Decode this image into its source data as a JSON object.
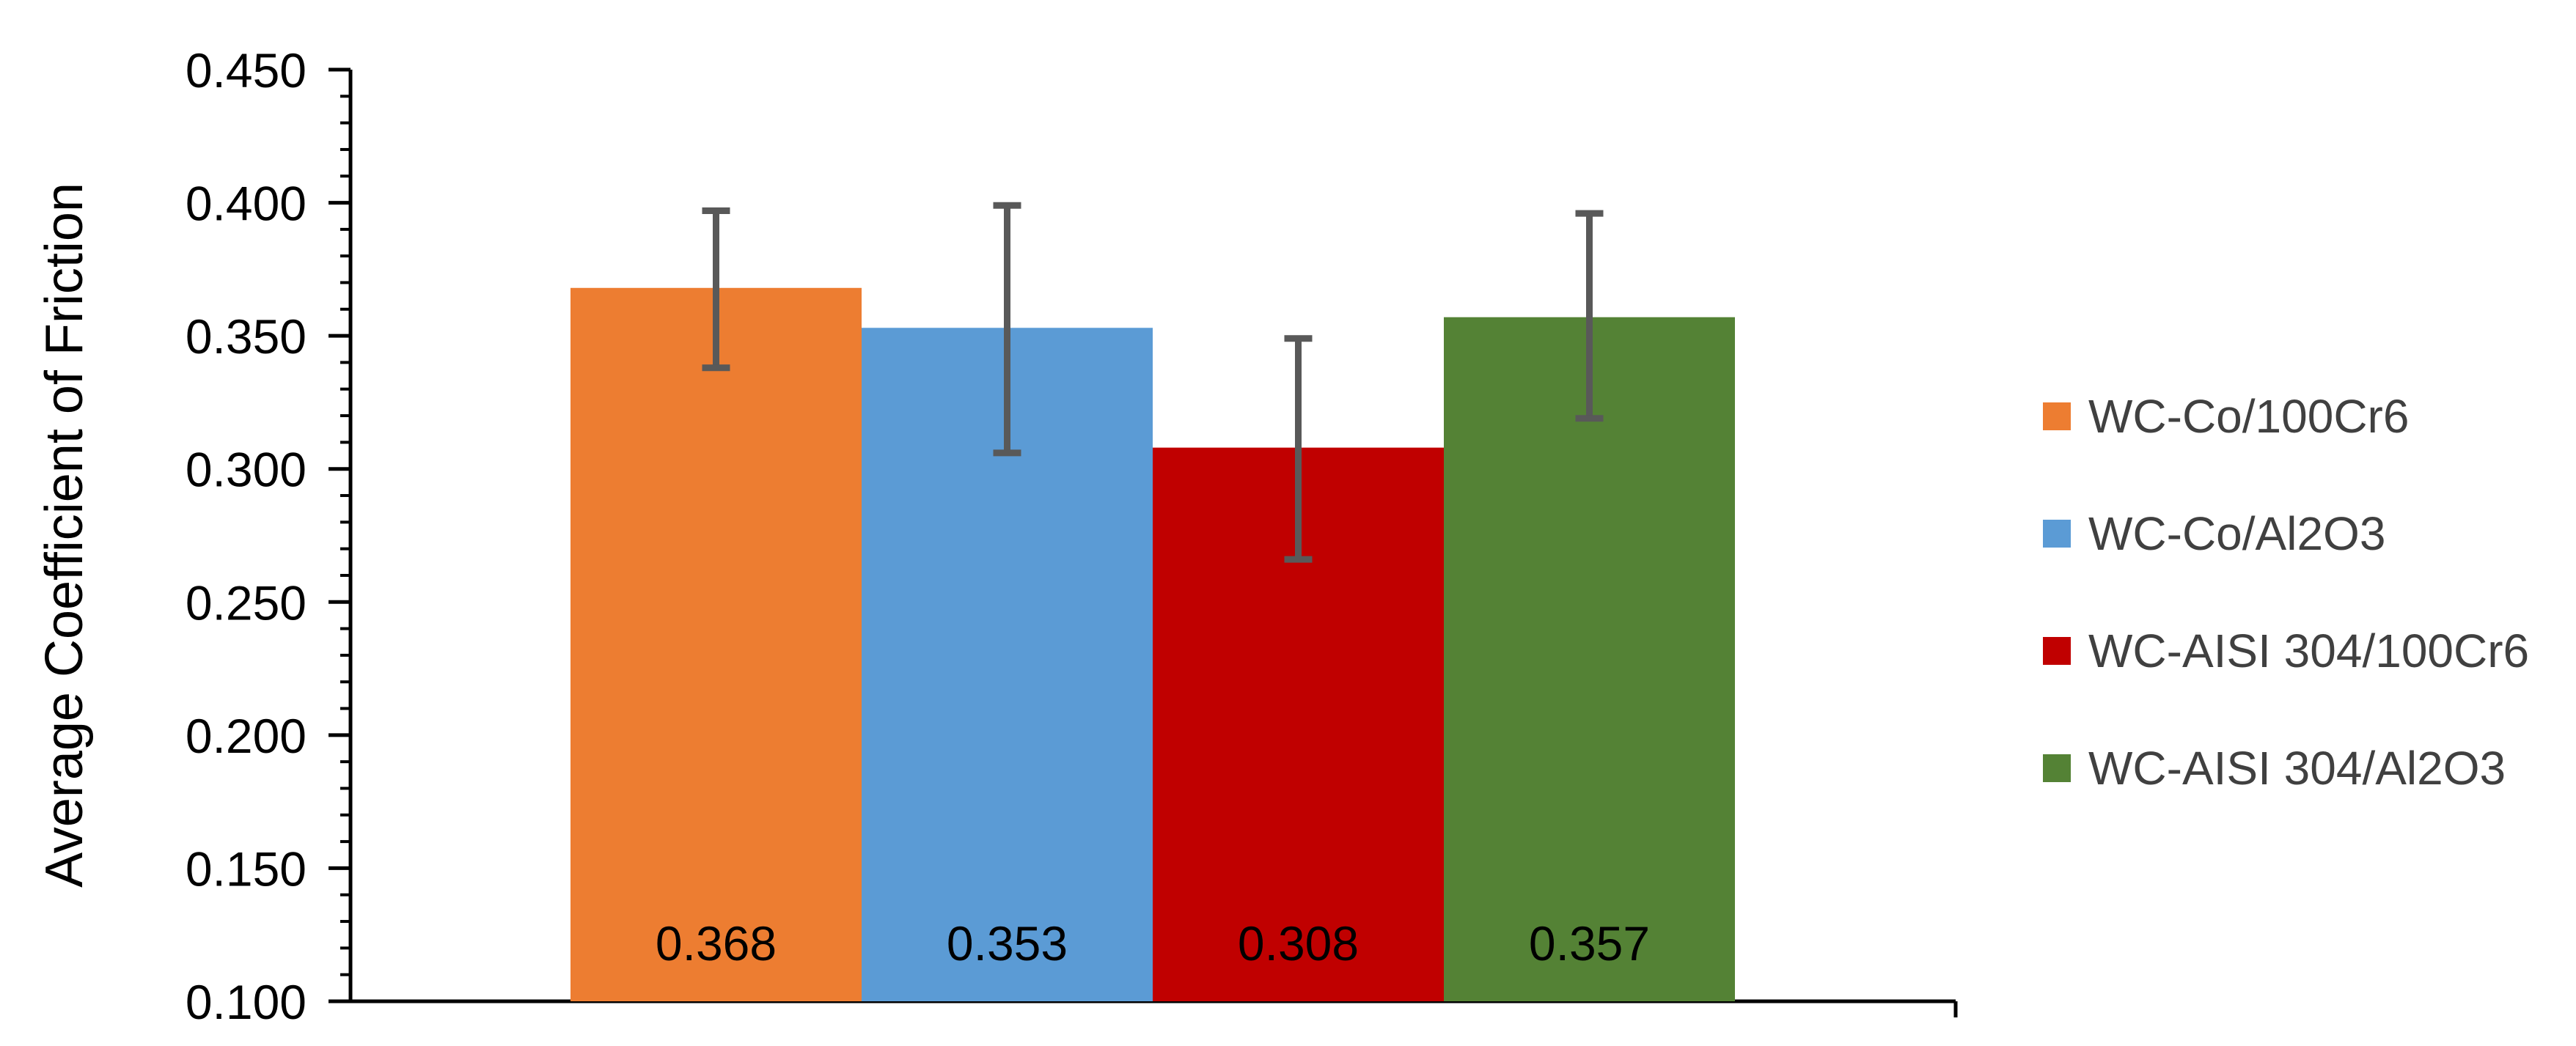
{
  "chart_data": {
    "type": "bar",
    "title": "",
    "xlabel": "",
    "ylabel": "Average Coefficient of Friction",
    "ylim": [
      0.1,
      0.45
    ],
    "yticks": [
      "0.100",
      "0.150",
      "0.200",
      "0.250",
      "0.300",
      "0.350",
      "0.400",
      "0.450"
    ],
    "grid": false,
    "legend_position": "right",
    "series": [
      {
        "name": "WC-Co/100Cr6",
        "value": 0.368,
        "label": "0.368",
        "error_low": 0.338,
        "error_high": 0.397,
        "color": "#ED7D31"
      },
      {
        "name": "WC-Co/Al2O3",
        "value": 0.353,
        "label": "0.353",
        "error_low": 0.306,
        "error_high": 0.399,
        "color": "#5B9BD5"
      },
      {
        "name": "WC-AISI 304/100Cr6",
        "value": 0.308,
        "label": "0.308",
        "error_low": 0.266,
        "error_high": 0.349,
        "color": "#C00000"
      },
      {
        "name": "WC-AISI 304/Al2O3",
        "value": 0.357,
        "label": "0.357",
        "error_low": 0.319,
        "error_high": 0.396,
        "color": "#548235"
      }
    ],
    "axis_color": "#000000",
    "error_bar_color": "#595959"
  }
}
